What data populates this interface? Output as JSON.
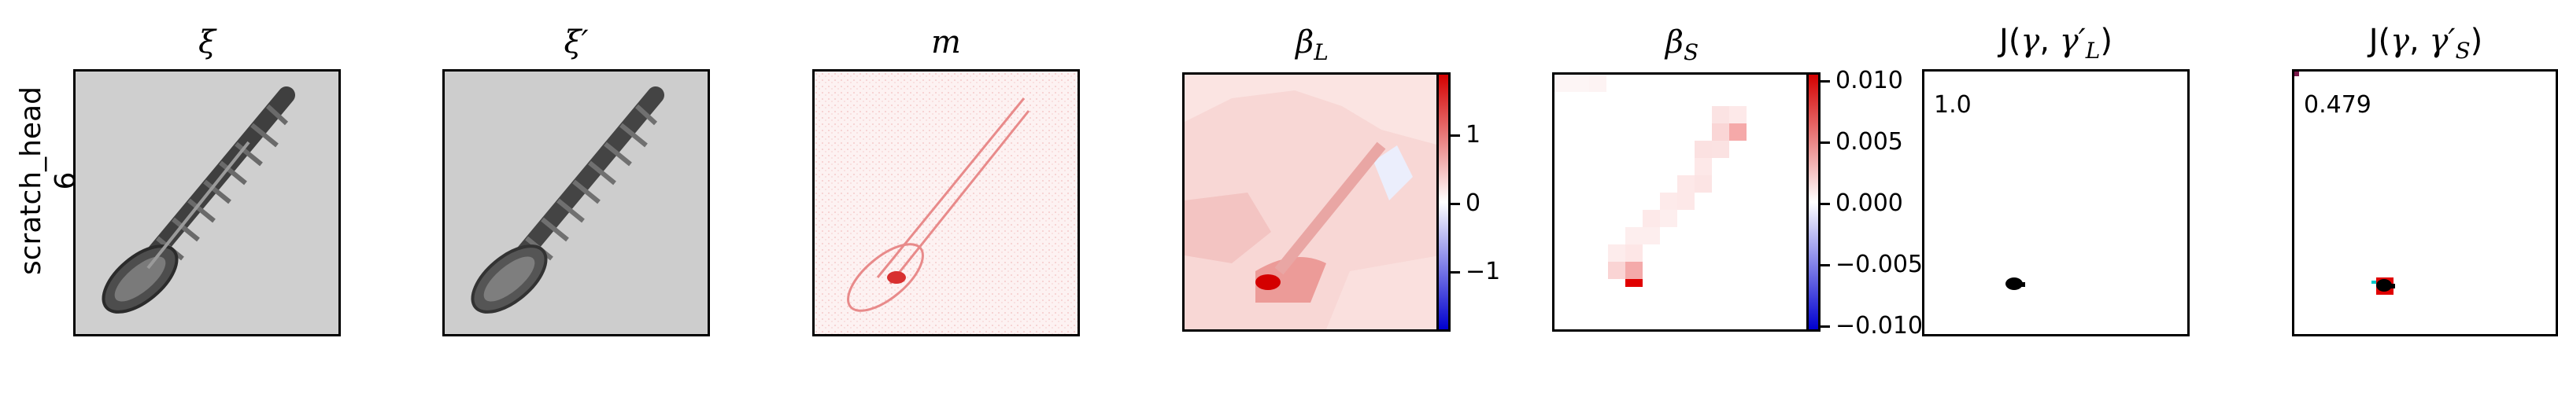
{
  "row_label": {
    "line1": "scratch_head",
    "line2": "6"
  },
  "panels": [
    {
      "title": "ξ"
    },
    {
      "title": "ξ′"
    },
    {
      "title": "m"
    },
    {
      "title": "β",
      "title_sub": "L"
    },
    {
      "title": "β",
      "title_sub": "S"
    },
    {
      "title_prefix": "J(",
      "title_gamma": "γ",
      "title_sep": ", ",
      "title_gamma2": "γ′",
      "title_sub": "L",
      "title_suffix": ")",
      "annotation": "1.0"
    },
    {
      "title_prefix": "J(",
      "title_gamma": "γ",
      "title_sep": ", ",
      "title_gamma2": "γ′",
      "title_sub": "S",
      "title_suffix": ")",
      "annotation": "0.479"
    }
  ],
  "colorbar_L": {
    "ticks": [
      "1",
      "0",
      "−1"
    ],
    "colors": {
      "top": "#d40000",
      "mid": "#ffffff",
      "bottom": "#0000d0"
    }
  },
  "colorbar_S": {
    "ticks": [
      "0.010",
      "0.005",
      "0.000",
      "−0.005",
      "−0.010"
    ],
    "colors": {
      "top": "#d40000",
      "mid": "#ffffff",
      "bottom": "#0000d0"
    }
  },
  "colors": {
    "screw_bg": "#d0d0d0",
    "screw_body": "#4a4a4a",
    "heat_red": "#e0301e",
    "mask_dark": "#000000",
    "mask_red": "#e00000",
    "mask_cyan": "#00c8c8"
  }
}
